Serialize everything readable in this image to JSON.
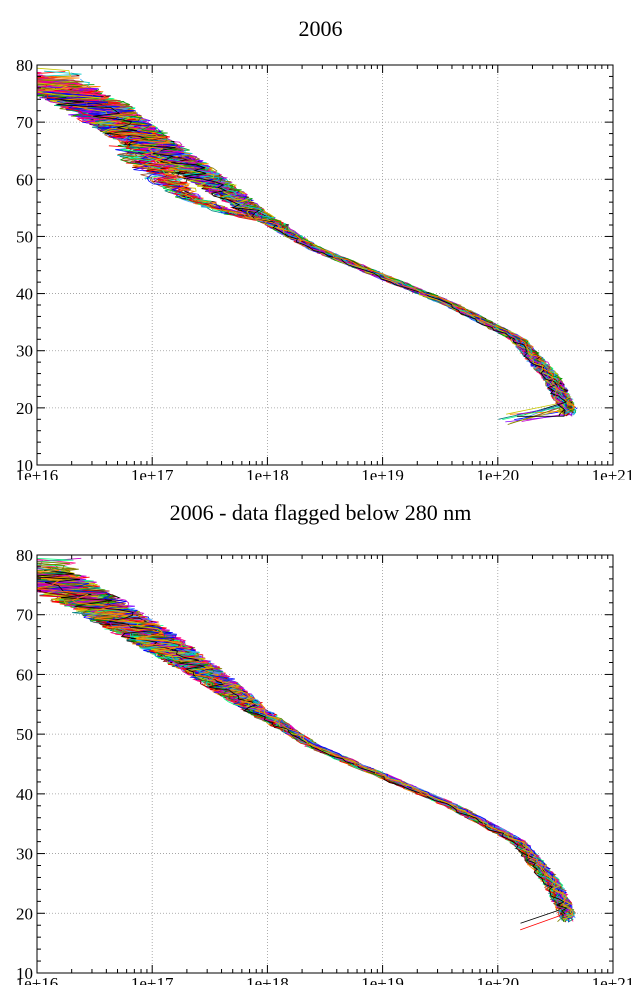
{
  "chart_data": [
    {
      "type": "line",
      "title": "2006",
      "xlabel": "",
      "ylabel": "",
      "x_scale": "log",
      "xlim": [
        1e+16,
        1e+21
      ],
      "ylim": [
        10,
        80
      ],
      "x_tick_labels": [
        "1e+16",
        "1e+17",
        "1e+18",
        "1e+19",
        "1e+20",
        "1e+21"
      ],
      "y_tick_labels": [
        "10",
        "20",
        "30",
        "40",
        "50",
        "60",
        "70",
        "80"
      ],
      "grid": true,
      "legend": "none",
      "series_count_approx": 120,
      "median_profile": {
        "x": [
          4e+20,
          3e+20,
          1.5e+20,
          4e+19,
          1e+19,
          2.5e+18,
          8e+17,
          3e+17,
          1e+17,
          3e+16,
          1e+16
        ],
        "y": [
          20,
          25,
          32,
          38,
          43,
          48,
          54,
          60,
          66,
          73,
          78
        ]
      },
      "outlier_branch": {
        "x": [
          1.5e+18,
          5e+17,
          2e+17,
          1e+17,
          7e+16
        ],
        "y": [
          52,
          54,
          57,
          62,
          66
        ]
      },
      "colors": [
        "#ff0000",
        "#00a000",
        "#0000ff",
        "#00c8c8",
        "#c800c8",
        "#c8c800",
        "#000000",
        "#ff8000",
        "#8000ff",
        "#00ff80",
        "#ff0080",
        "#808000",
        "#008080",
        "#800000",
        "#40a0ff",
        "#a0522d"
      ]
    },
    {
      "type": "line",
      "title": "2006 - data flagged below 280 nm",
      "xlabel": "",
      "ylabel": "",
      "x_scale": "log",
      "xlim": [
        1e+16,
        1e+21
      ],
      "ylim": [
        10,
        80
      ],
      "x_tick_labels": [
        "1e+16",
        "1e+17",
        "1e+18",
        "1e+19",
        "1e+20",
        "1e+21"
      ],
      "y_tick_labels": [
        "10",
        "20",
        "30",
        "40",
        "50",
        "60",
        "70",
        "80"
      ],
      "grid": true,
      "legend": "none",
      "series_count_approx": 120,
      "median_profile": {
        "x": [
          4e+20,
          3e+20,
          1.5e+20,
          4e+19,
          1e+19,
          2.5e+18,
          8e+17,
          3e+17,
          1e+17,
          3e+16,
          1e+16
        ],
        "y": [
          20,
          25,
          32,
          38,
          43,
          48,
          54,
          60,
          66,
          72,
          77
        ]
      },
      "colors": [
        "#ff0000",
        "#00a000",
        "#0000ff",
        "#00c8c8",
        "#c800c8",
        "#c8c800",
        "#000000",
        "#ff8000",
        "#8000ff",
        "#00ff80",
        "#ff0080",
        "#808000",
        "#008080",
        "#800000",
        "#40a0ff",
        "#a0522d"
      ]
    }
  ]
}
